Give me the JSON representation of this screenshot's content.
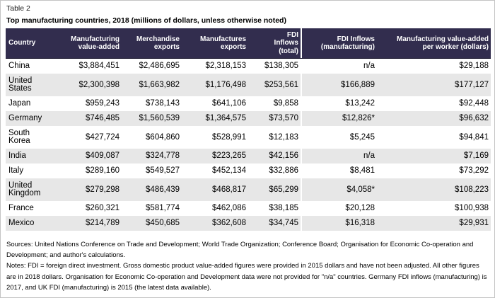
{
  "chart_data": {
    "type": "table",
    "table_label": "Table 2",
    "title": "Top manufacturing countries, 2018 (millions of dollars, unless otherwise noted)",
    "columns": [
      {
        "key": "country",
        "label": "Country",
        "label_display": "Country"
      },
      {
        "key": "manufacturing_value_added",
        "label": "Manufacturing value-added",
        "label_display": "Manufacturing\nvalue-added"
      },
      {
        "key": "merchandise_exports",
        "label": "Merchandise exports",
        "label_display": "Merchandise\nexports"
      },
      {
        "key": "manufactures_exports",
        "label": "Manufactures exports",
        "label_display": "Manufactures\nexports"
      },
      {
        "key": "fdi_inflows_total",
        "label": "FDI Inflows (total)",
        "label_display": "FDI\nInflows\n(total)"
      },
      {
        "key": "fdi_inflows_manufacturing",
        "label": "FDI Inflows (manufacturing)",
        "label_display": "FDI Inflows\n(manufacturing)"
      },
      {
        "key": "manufacturing_value_added_per_worker",
        "label": "Manufacturing value-added per worker (dollars)",
        "label_display": "Manufacturing value-added\nper worker (dollars)"
      }
    ],
    "rows": [
      {
        "cells": [
          "China",
          "$3,884,451",
          "$2,486,695",
          "$2,318,153",
          "$138,305",
          "n/a",
          "$29,188"
        ]
      },
      {
        "cells": [
          "United States",
          "$2,300,398",
          "$1,663,982",
          "$1,176,498",
          "$253,561",
          "$166,889",
          "$177,127"
        ]
      },
      {
        "cells": [
          "Japan",
          "$959,243",
          "$738,143",
          "$641,106",
          "$9,858",
          "$13,242",
          "$92,448"
        ]
      },
      {
        "cells": [
          "Germany",
          "$746,485",
          "$1,560,539",
          "$1,364,575",
          "$73,570",
          "$12,826*",
          "$96,632"
        ]
      },
      {
        "cells": [
          "South Korea",
          "$427,724",
          "$604,860",
          "$528,991",
          "$12,183",
          "$5,245",
          "$94,841"
        ]
      },
      {
        "cells": [
          "India",
          "$409,087",
          "$324,778",
          "$223,265",
          "$42,156",
          "n/a",
          "$7,169"
        ]
      },
      {
        "cells": [
          "Italy",
          "$289,160",
          "$549,527",
          "$452,134",
          "$32,886",
          "$8,481",
          "$73,292"
        ]
      },
      {
        "cells": [
          "United Kingdom",
          "$279,298",
          "$486,439",
          "$468,817",
          "$65,299",
          "$4,058*",
          "$108,223"
        ]
      },
      {
        "cells": [
          "France",
          "$260,321",
          "$581,774",
          "$462,086",
          "$38,185",
          "$20,128",
          "$100,938"
        ]
      },
      {
        "cells": [
          "Mexico",
          "$214,789",
          "$450,685",
          "$362,608",
          "$34,745",
          "$16,318",
          "$29,931"
        ]
      }
    ],
    "sources": "Sources: United Nations Conference on Trade and Development; World Trade Organization; Conference Board; Organisation for Economic Co-operation and Development; and author's calculations.",
    "notes": "Notes: FDI = foreign direct investment. Gross domestic product value-added figures were provided in 2015 dollars and have not been adjusted. All other figures are in 2018 dollars. Organisation for Economic Co-operation and Development data were not provided for \"n/a\" countries. Germany FDI inflows (manufacturing) is 2017, and UK FDI (manufacturing) is 2015 (the latest data available).",
    "layout": {
      "header_bg": "#322d4e",
      "header_text_color": "#ffffff",
      "row_alt_bg": "#e7e7e7",
      "section_divider_color": "#ffffff",
      "grid": "horizontal-stripes",
      "value_alignment": "right",
      "footnote_marker": "*"
    }
  }
}
